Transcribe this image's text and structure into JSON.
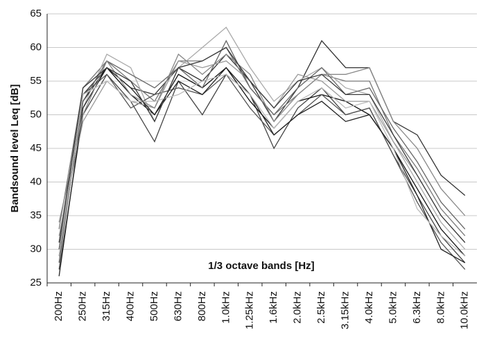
{
  "chart_data": {
    "type": "line",
    "y_label": "Bandsound level Leq [dB]",
    "x_label": "1/3 octave bands [Hz]",
    "categories": [
      "200Hz",
      "250Hz",
      "315Hz",
      "400Hz",
      "500Hz",
      "630Hz",
      "800Hz",
      "1.0kHz",
      "1.25kHz",
      "1.6kHz",
      "2.0kHz",
      "2.5kHz",
      "3.15kHz",
      "4.0kHz",
      "5.0kHz",
      "6.3kHz",
      "8.0kHz",
      "10.0kHz"
    ],
    "series": [
      {
        "color": "#333333",
        "values": [
          30,
          53,
          57,
          54,
          53,
          57,
          55,
          59,
          55,
          49,
          54,
          61,
          57,
          57,
          49,
          47,
          41,
          38
        ]
      },
      {
        "color": "#444444",
        "values": [
          27,
          50,
          56,
          52,
          46,
          55,
          50,
          56,
          53,
          45,
          51,
          54,
          50,
          51,
          44,
          38,
          32,
          28
        ]
      },
      {
        "color": "#777777",
        "values": [
          33,
          54,
          58,
          55,
          52,
          58,
          58,
          60,
          54,
          50,
          53,
          56,
          55,
          55,
          47,
          42,
          36,
          32
        ]
      },
      {
        "color": "#111111",
        "values": [
          29,
          52,
          57,
          53,
          50,
          56,
          54,
          57,
          52,
          48,
          52,
          53,
          52,
          50,
          45,
          39,
          33,
          29
        ]
      },
      {
        "color": "#aaaaaa",
        "values": [
          31,
          51,
          59,
          57,
          49,
          57,
          60,
          63,
          57,
          52,
          55,
          57,
          54,
          53,
          46,
          40,
          34,
          30
        ]
      },
      {
        "color": "#555555",
        "values": [
          28,
          53,
          56,
          51,
          53,
          54,
          53,
          56,
          51,
          47,
          50,
          53,
          50,
          51,
          44,
          37,
          31,
          27
        ]
      },
      {
        "color": "#999999",
        "values": [
          32,
          49,
          55,
          52,
          51,
          58,
          57,
          58,
          55,
          51,
          56,
          55,
          52,
          52,
          46,
          41,
          35,
          31
        ]
      },
      {
        "color": "#666666",
        "values": [
          30,
          52,
          58,
          56,
          54,
          57,
          54,
          61,
          54,
          50,
          54,
          57,
          53,
          54,
          48,
          43,
          37,
          33
        ]
      },
      {
        "color": "#222222",
        "values": [
          26,
          51,
          57,
          54,
          50,
          55,
          53,
          57,
          53,
          47,
          50,
          52,
          49,
          50,
          45,
          38,
          30,
          28
        ]
      },
      {
        "color": "#888888",
        "values": [
          34,
          50,
          58,
          53,
          51,
          59,
          56,
          59,
          56,
          49,
          53,
          56,
          56,
          57,
          49,
          45,
          39,
          35
        ]
      },
      {
        "color": "#bbbbbb",
        "values": [
          29,
          53,
          55,
          52,
          52,
          53,
          55,
          56,
          53,
          48,
          52,
          54,
          51,
          52,
          45,
          36,
          32,
          29
        ]
      },
      {
        "color": "#3a3a3a",
        "values": [
          31,
          54,
          57,
          55,
          49,
          57,
          58,
          60,
          55,
          51,
          55,
          56,
          53,
          53,
          47,
          41,
          35,
          31
        ]
      }
    ],
    "ylim": [
      25,
      65
    ],
    "yticks": [
      25,
      30,
      35,
      40,
      45,
      50,
      55,
      60,
      65
    ],
    "grid": true
  }
}
